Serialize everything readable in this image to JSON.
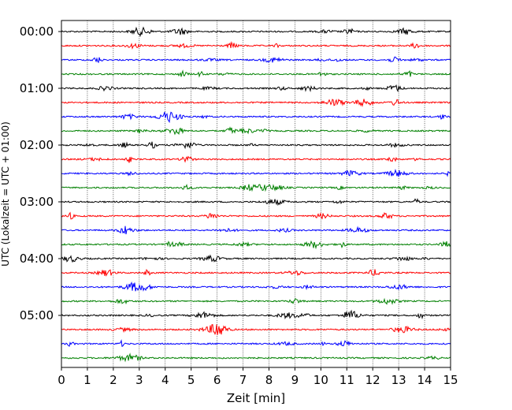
{
  "chart_data": {
    "type": "line",
    "title": "",
    "xlabel": "Zeit  [min]",
    "ylabel": "UTC (Lokalzeit = UTC + 01:00)",
    "xlim": [
      0,
      15
    ],
    "x_ticks": [
      "0",
      "1",
      "2",
      "3",
      "4",
      "5",
      "6",
      "7",
      "8",
      "9",
      "10",
      "11",
      "12",
      "13",
      "14",
      "15"
    ],
    "y_ticks": [
      "00:00",
      "01:00",
      "02:00",
      "03:00",
      "04:00",
      "05:00"
    ],
    "trace_interval_min": 15,
    "trace_count": 24,
    "trace_colors": [
      "#000000",
      "#ff0000",
      "#0000ff",
      "#008000"
    ],
    "grid": "vertical-dotted",
    "legend": "none"
  }
}
